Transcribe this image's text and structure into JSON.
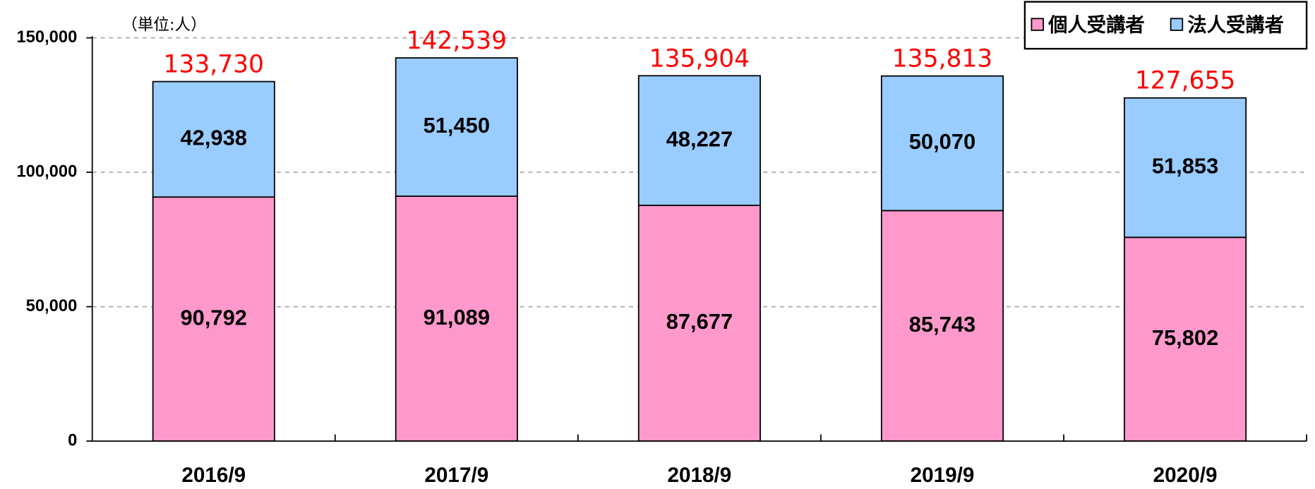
{
  "chart_data": {
    "type": "stacked_bar",
    "unit_label": "（単位:人）",
    "categories": [
      "2016/9",
      "2017/9",
      "2018/9",
      "2019/9",
      "2020/9"
    ],
    "series": [
      {
        "name": "個人受講者",
        "color": "#ff99cc",
        "values": [
          90792,
          91089,
          87677,
          85743,
          75802
        ],
        "value_labels": [
          "90,792",
          "91,089",
          "87,677",
          "85,743",
          "75,802"
        ]
      },
      {
        "name": "法人受講者",
        "color": "#99ccff",
        "values": [
          42938,
          51450,
          48227,
          50070,
          51853
        ],
        "value_labels": [
          "42,938",
          "51,450",
          "48,227",
          "50,070",
          "51,853"
        ]
      }
    ],
    "totals": [
      133730,
      142539,
      135904,
      135813,
      127655
    ],
    "total_labels": [
      "133,730",
      "142,539",
      "135,904",
      "135,813",
      "127,655"
    ],
    "total_color": "#ff0000",
    "ylim": [
      0,
      150000
    ],
    "yticks": [
      {
        "value": 0,
        "label": "0"
      },
      {
        "value": 50000,
        "label": "50,000"
      },
      {
        "value": 100000,
        "label": "100,000"
      },
      {
        "value": 150000,
        "label": "150,000"
      }
    ],
    "grid": true,
    "legend": "top-right"
  }
}
